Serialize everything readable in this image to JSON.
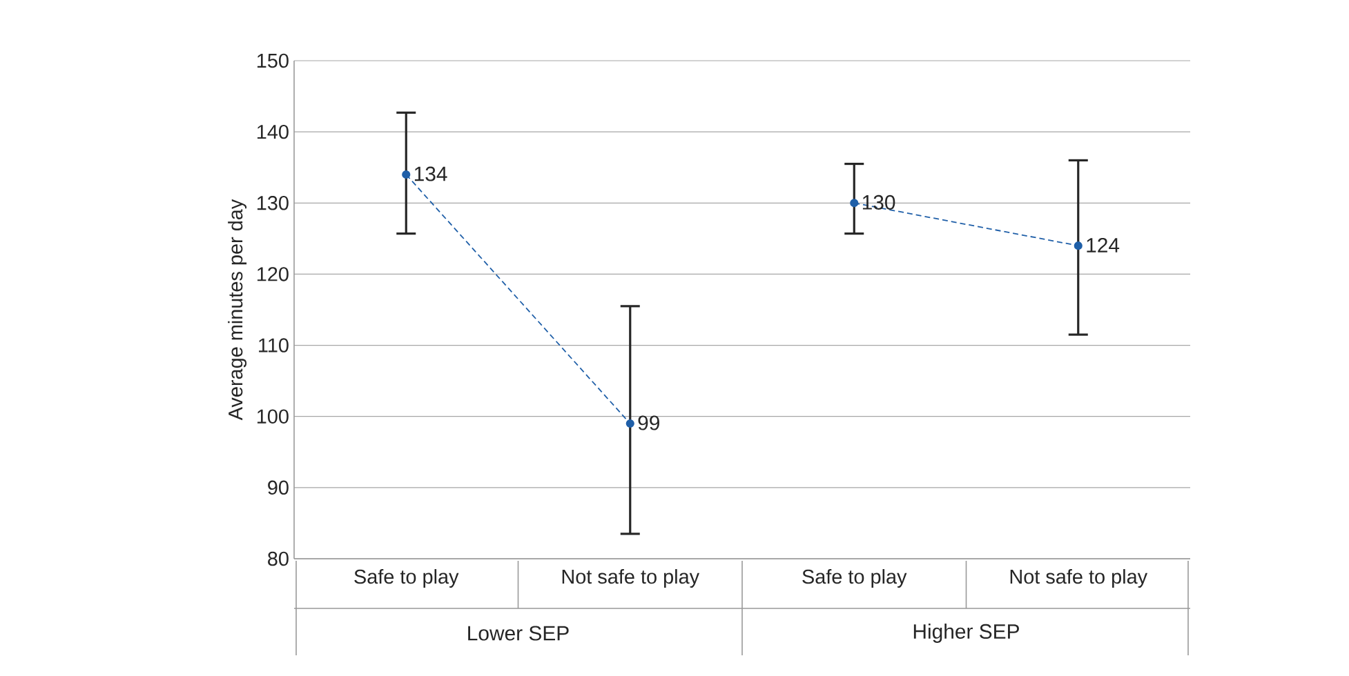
{
  "chart_data": {
    "type": "line",
    "ylabel": "Average minutes per day",
    "categories": [
      "Safe to play",
      "Not safe to play",
      "Safe to play",
      "Not safe to play"
    ],
    "series": [
      {
        "color": "#1f5fa8",
        "values": [
          134,
          99,
          null,
          null
        ],
        "errors": [
          [
            125.7,
            142.7
          ],
          [
            83.5,
            115.5
          ],
          null,
          null
        ]
      },
      {
        "color": "#1f5fa8",
        "values": [
          null,
          null,
          130,
          124
        ],
        "errors": [
          null,
          null,
          [
            125.7,
            135.5
          ],
          [
            111.5,
            136
          ]
        ]
      }
    ],
    "annotations": [
      "Lower SEP",
      "Higher SEP"
    ],
    "ylim": [
      80,
      150
    ],
    "yticks": [
      80,
      90,
      100,
      110,
      120,
      130,
      140,
      150
    ],
    "grid": "y",
    "marker": "circle",
    "line_style": "dashed",
    "data_labels": true
  }
}
